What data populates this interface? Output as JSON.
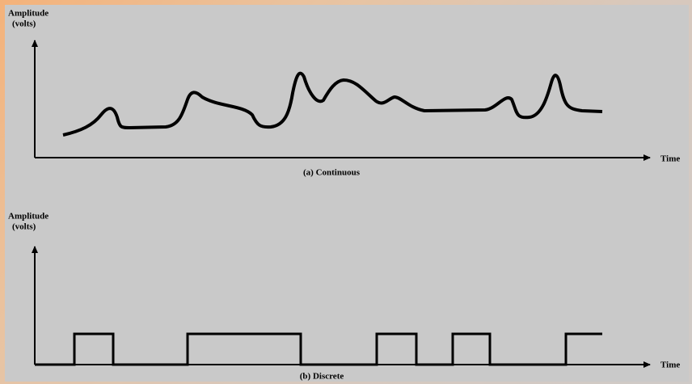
{
  "panels": [
    {
      "axis_label": "Amplitude",
      "axis_unit": "(volts)",
      "time_label": "Time",
      "caption": "(a) Continuous"
    },
    {
      "axis_label": "Amplitude",
      "axis_unit": "(volts)",
      "time_label": "Time",
      "caption": "(b) Discrete"
    }
  ]
}
